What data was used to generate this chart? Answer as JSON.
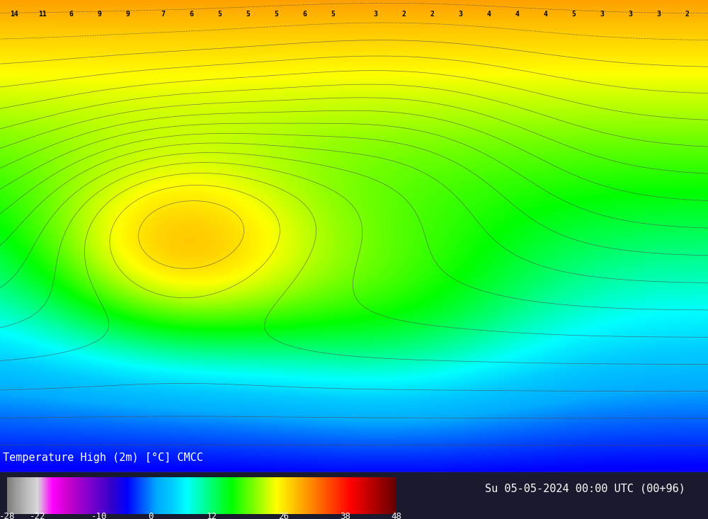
{
  "title_left": "Temperature High (2m) [°C] CMCC",
  "title_right": "Su 05-05-2024 00:00 UTC (00+96)",
  "colorbar_levels": [
    -28,
    -22,
    -10,
    0,
    12,
    26,
    38,
    48
  ],
  "colorbar_colors": [
    "#808080",
    "#b0b0b0",
    "#d8d8d8",
    "#ff00ff",
    "#cc00cc",
    "#9900cc",
    "#6600cc",
    "#3300cc",
    "#0000ff",
    "#0055ff",
    "#00aaff",
    "#00ccff",
    "#00ffff",
    "#00ffaa",
    "#00ff55",
    "#00ff00",
    "#55ff00",
    "#aaff00",
    "#ffff00",
    "#ffcc00",
    "#ff9900",
    "#ff6600",
    "#ff3300",
    "#ff0000",
    "#cc0000",
    "#990000",
    "#660000"
  ],
  "bg_color": "#000000",
  "fig_width": 10.0,
  "fig_height": 7.33
}
